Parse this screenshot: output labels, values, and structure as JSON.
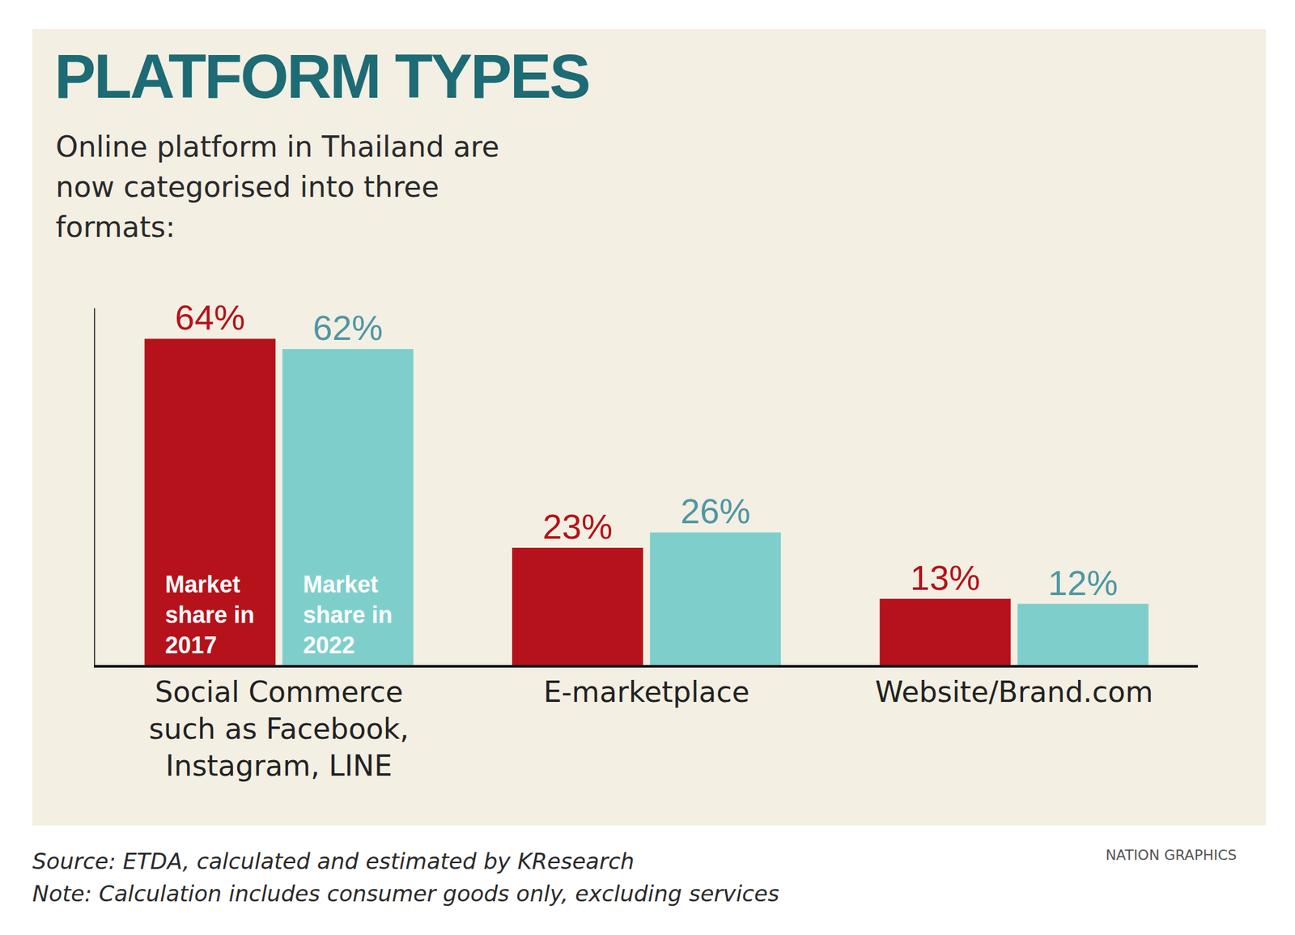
{
  "chart_data": {
    "type": "bar",
    "title": "PLATFORM TYPES",
    "subtitle": "Online platform in Thailand are now categorised into three formats:",
    "categories": [
      "Social Commerce such as Facebook, Instagram, LINE",
      "E-marketplace",
      "Website/Brand.com"
    ],
    "series": [
      {
        "name": "Market share in 2017",
        "color": "#b5121b",
        "values": [
          64,
          23,
          13
        ],
        "value_labels": [
          "64%",
          "23%",
          "13%"
        ]
      },
      {
        "name": "Market share in 2022",
        "color": "#7ecfcc",
        "values": [
          62,
          26,
          12
        ],
        "value_labels": [
          "62%",
          "26%",
          "12%"
        ]
      }
    ],
    "ylim": [
      0,
      70
    ],
    "grid": false,
    "data_labels": true,
    "tick_labels": "x",
    "annotations": {
      "source": "Source: ETDA, calculated and estimated by KResearch",
      "note": "Note: Calculation includes consumer goods only, excluding services",
      "credit": "NATION GRAPHICS"
    }
  }
}
